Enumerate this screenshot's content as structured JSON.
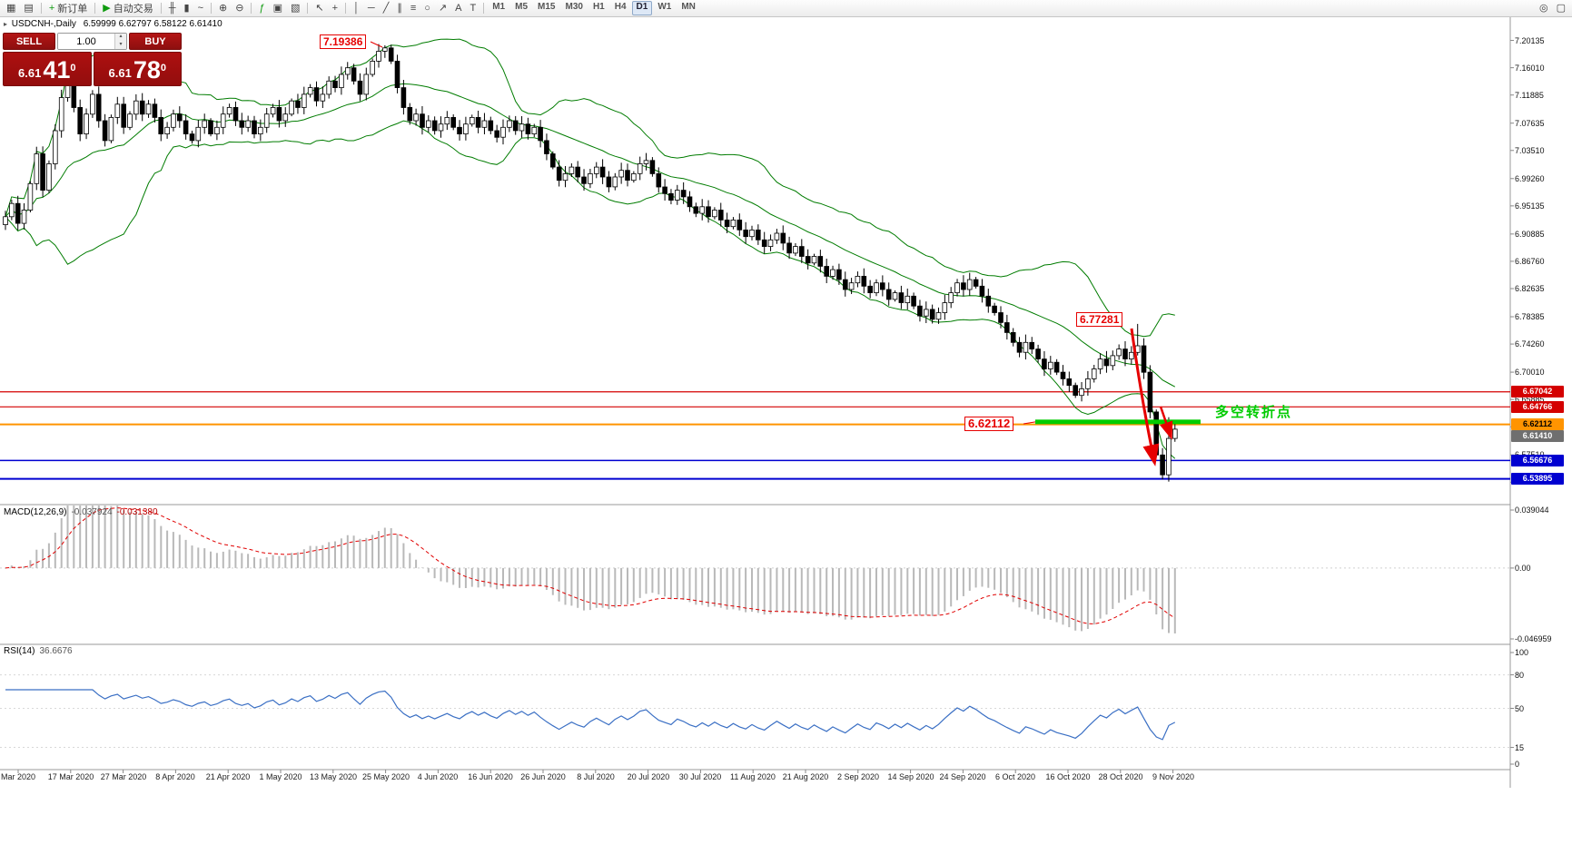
{
  "toolbar": {
    "tools": [
      {
        "name": "charts-grid-icon",
        "glyph": "▦"
      },
      {
        "name": "tick-chart-icon",
        "glyph": "▤"
      },
      {
        "name": "sep1",
        "sep": true
      },
      {
        "name": "new-order-button",
        "glyph": "+",
        "glyph_color": "#0f9b0f",
        "label": "新订单"
      },
      {
        "name": "sep2",
        "sep": true
      },
      {
        "name": "autotrading-button",
        "glyph": "▶",
        "glyph_color": "#0f9b0f",
        "label": "自动交易"
      },
      {
        "name": "sep3",
        "sep": true
      },
      {
        "name": "bar-chart-icon",
        "glyph": "╫"
      },
      {
        "name": "candlestick-chart-icon",
        "glyph": "▮"
      },
      {
        "name": "line-chart-icon",
        "glyph": "~"
      },
      {
        "name": "sep4",
        "sep": true
      },
      {
        "name": "zoom-in-icon",
        "glyph": "⊕"
      },
      {
        "name": "zoom-out-icon",
        "glyph": "⊖"
      },
      {
        "name": "sep5",
        "sep": true
      },
      {
        "name": "indicators-icon",
        "glyph": "ƒ",
        "glyph_color": "#0f9b0f"
      },
      {
        "name": "periods-icon",
        "glyph": "▣"
      },
      {
        "name": "templates-icon",
        "glyph": "▧"
      },
      {
        "name": "sep6",
        "sep": true
      },
      {
        "name": "cursor-icon",
        "glyph": "↖"
      },
      {
        "name": "crosshair-icon",
        "glyph": "+"
      },
      {
        "name": "sep7",
        "sep": true
      },
      {
        "name": "vertical-line-icon",
        "glyph": "│"
      },
      {
        "name": "horizontal-line-icon",
        "glyph": "─"
      },
      {
        "name": "trendline-icon",
        "glyph": "╱"
      },
      {
        "name": "channel-icon",
        "glyph": "∥"
      },
      {
        "name": "fibonacci-icon",
        "glyph": "≡"
      },
      {
        "name": "shapes-icon",
        "glyph": "○"
      },
      {
        "name": "arrows-icon",
        "glyph": "↗"
      },
      {
        "name": "text-icon",
        "glyph": "A"
      },
      {
        "name": "text-label-icon",
        "glyph": "T"
      },
      {
        "name": "sep8",
        "sep": true
      }
    ],
    "timeframes": [
      "M1",
      "M5",
      "M15",
      "M30",
      "H1",
      "H4",
      "D1",
      "W1",
      "MN"
    ],
    "active_timeframe": "D1",
    "right_tools": [
      {
        "name": "search-icon",
        "glyph": "◎"
      },
      {
        "name": "window-icon",
        "glyph": "▢"
      }
    ]
  },
  "symbol_line": {
    "symbol": "USDCNH-,Daily",
    "ohlc": "6.59999 6.62797 6.58122 6.61410"
  },
  "icons": {
    "symbol_marker": "▸",
    "spinner_up": "▴",
    "spinner_down": "▾"
  },
  "one_click": {
    "sell_label": "SELL",
    "buy_label": "BUY",
    "volume": "1.00",
    "sell": {
      "prefix": "6.61",
      "big": "41",
      "sup": "0"
    },
    "buy": {
      "prefix": "6.61",
      "big": "78",
      "sup": "0"
    }
  },
  "panels": {
    "macd_label": "MACD(12,26,9)",
    "macd_value_main": "-0.037924",
    "macd_value_signal": "-0.031380",
    "rsi_label": "RSI(14)",
    "rsi_value": "36.6676"
  },
  "annotations": {
    "peak": "7.19386",
    "high": "6.77281",
    "support": "6.62112",
    "turning_point": "多空转折点",
    "arrow_color": "#e60000",
    "support_zone_color": "#00cc00"
  },
  "chart_data": {
    "type": "candlestick",
    "symbol": "USDCNH-",
    "timeframe": "Daily",
    "ohlc_display": {
      "open": "6.59999",
      "high": "6.62797",
      "low": "6.58122",
      "close": "6.61410"
    },
    "closes": [
      6.935,
      6.955,
      6.925,
      6.945,
      6.985,
      7.03,
      6.975,
      7.015,
      7.065,
      7.115,
      7.16,
      7.1,
      7.06,
      7.09,
      7.12,
      7.08,
      7.05,
      7.085,
      7.105,
      7.07,
      7.09,
      7.11,
      7.09,
      7.105,
      7.085,
      7.06,
      7.07,
      7.09,
      7.08,
      7.06,
      7.05,
      7.07,
      7.08,
      7.06,
      7.07,
      7.09,
      7.1,
      7.08,
      7.07,
      7.08,
      7.06,
      7.07,
      7.09,
      7.1,
      7.08,
      7.09,
      7.11,
      7.1,
      7.12,
      7.13,
      7.11,
      7.12,
      7.14,
      7.13,
      7.15,
      7.16,
      7.14,
      7.12,
      7.15,
      7.17,
      7.185,
      7.19,
      7.17,
      7.13,
      7.1,
      7.08,
      7.09,
      7.07,
      7.08,
      7.065,
      7.075,
      7.085,
      7.07,
      7.06,
      7.075,
      7.085,
      7.07,
      7.08,
      7.065,
      7.055,
      7.07,
      7.08,
      7.065,
      7.075,
      7.06,
      7.07,
      7.05,
      7.03,
      7.01,
      6.99,
      7.0,
      7.01,
      6.995,
      6.985,
      7.0,
      7.01,
      6.995,
      6.98,
      6.995,
      7.005,
      6.99,
      7.0,
      7.015,
      7.02,
      7.0,
      6.98,
      6.97,
      6.96,
      6.975,
      6.965,
      6.95,
      6.94,
      6.95,
      6.935,
      6.945,
      6.93,
      6.92,
      6.93,
      6.915,
      6.905,
      6.915,
      6.9,
      6.89,
      6.9,
      6.91,
      6.895,
      6.88,
      6.89,
      6.875,
      6.865,
      6.875,
      6.86,
      6.845,
      6.855,
      6.84,
      6.825,
      6.835,
      6.845,
      6.83,
      6.82,
      6.835,
      6.825,
      6.81,
      6.82,
      6.805,
      6.815,
      6.8,
      6.785,
      6.795,
      6.78,
      6.79,
      6.805,
      6.82,
      6.835,
      6.825,
      6.84,
      6.83,
      6.815,
      6.8,
      6.79,
      6.775,
      6.76,
      6.745,
      6.73,
      6.745,
      6.735,
      6.72,
      6.705,
      6.715,
      6.7,
      6.69,
      6.68,
      6.665,
      6.675,
      6.69,
      6.705,
      6.72,
      6.71,
      6.725,
      6.735,
      6.72,
      6.73,
      6.74,
      6.7,
      6.64,
      6.575,
      6.545,
      6.6,
      6.614
    ],
    "wick_high_overrides": {
      "61": 7.194,
      "182": 6.773,
      "187": 6.632,
      "188": 6.627
    },
    "wick_low_overrides": {
      "186": 6.538
    },
    "indicators": {
      "bollinger": {
        "period": 20,
        "deviation": 2,
        "color": "#007c00"
      },
      "macd": {
        "fast": 12,
        "slow": 26,
        "signal": 9,
        "histogram_color": "#b9b9b9",
        "signal_color": "#e00000"
      },
      "rsi": {
        "period": 14,
        "color": "#3a6fc4",
        "levels": [
          80,
          50,
          15
        ]
      }
    },
    "y_axis": {
      "ticks": [
        "7.20135",
        "7.16010",
        "7.11885",
        "7.07635",
        "7.03510",
        "6.99260",
        "6.95135",
        "6.90885",
        "6.86760",
        "6.82635",
        "6.78385",
        "6.74260",
        "6.70010",
        "6.65885",
        "6.61760",
        "6.57510",
        "6.53385"
      ],
      "tick_start": 7.20135,
      "tick_step": 0.04125
    },
    "macd_axis": [
      "0.039044",
      "0.00",
      "-0.046959"
    ],
    "rsi_axis": [
      "100",
      "80",
      "50",
      "15",
      "0"
    ],
    "levels": [
      {
        "price": 6.67042,
        "label": "6.67042",
        "color": "#d40000",
        "width": 1.2,
        "text": "#ffffff"
      },
      {
        "price": 6.64766,
        "label": "6.64766",
        "color": "#d40000",
        "width": 1.2,
        "text": "#ffffff"
      },
      {
        "price": 6.62112,
        "label": "6.62112",
        "color": "#ff9400",
        "width": 2,
        "text": "#000000"
      },
      {
        "price": 6.56676,
        "label": "6.56676",
        "color": "#0000d0",
        "width": 1.5,
        "text": "#ffffff"
      },
      {
        "price": 6.53895,
        "label": "6.53895",
        "color": "#0000d0",
        "width": 2,
        "text": "#ffffff"
      }
    ],
    "current_price": {
      "price": 6.6141,
      "label": "6.61410",
      "color": "#6f6f6f",
      "text": "#ffffff"
    },
    "x_axis": {
      "dates": [
        "Mar 2020",
        "17 Mar 2020",
        "27 Mar 2020",
        "8 Apr 2020",
        "21 Apr 2020",
        "1 May 2020",
        "13 May 2020",
        "25 May 2020",
        "4 Jun 2020",
        "16 Jun 2020",
        "26 Jun 2020",
        "8 Jul 2020",
        "20 Jul 2020",
        "30 Jul 2020",
        "11 Aug 2020",
        "21 Aug 2020",
        "2 Sep 2020",
        "14 Sep 2020",
        "24 Sep 2020",
        "6 Oct 2020",
        "16 Oct 2020",
        "28 Oct 2020",
        "9 Nov 2020"
      ]
    }
  }
}
